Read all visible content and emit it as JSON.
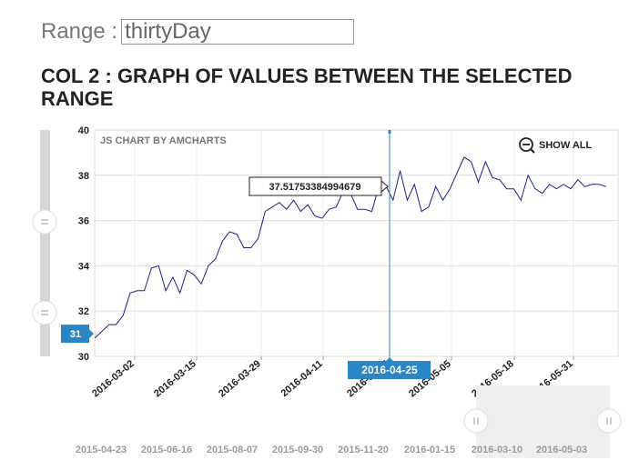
{
  "header": {
    "range_label": "Range :",
    "range_value": "thirtyDay",
    "section_title": "COL 2 : GRAPH OF VALUES BETWEEN THE SELECTED RANGE"
  },
  "chart": {
    "credit": "JS CHART BY AMCHARTS",
    "show_all_label": "SHOW ALL",
    "colors": {
      "line": "#1f1f8f",
      "cursor": "#2b86c5",
      "balloon_bg": "#2b86c5",
      "scrollbar": "#dddddd",
      "grid": "#dddddd"
    },
    "cursor_value_label": "31",
    "cursor_date_label": "2016-04-25",
    "balloon_value": "37.51753384994679",
    "scrollbar_date_labels": [
      "2015-04-23",
      "2015-06-16",
      "2015-08-07",
      "2015-09-30",
      "2015-11-20",
      "2016-01-15",
      "2016-03-10",
      "2016-05-03"
    ]
  },
  "chart_data": {
    "type": "line",
    "title": "",
    "xlabel": "",
    "ylabel": "",
    "ylim": [
      30,
      40
    ],
    "yticks": [
      30,
      32,
      34,
      36,
      38,
      40
    ],
    "xtick_labels": [
      "2016-03-02",
      "2016-03-15",
      "2016-03-29",
      "2016-04-11",
      "2016-04-25",
      "2016-05-05",
      "2016-05-18",
      "2016-05-31"
    ],
    "grid": true,
    "series": [
      {
        "values": [
          30.8,
          31.1,
          31.4,
          31.4,
          31.8,
          32.8,
          32.9,
          32.9,
          33.9,
          34.0,
          32.9,
          33.5,
          32.8,
          33.8,
          33.6,
          33.2,
          34.0,
          34.3,
          35.1,
          35.5,
          35.4,
          34.8,
          34.8,
          35.2,
          36.4,
          36.6,
          36.8,
          36.5,
          36.9,
          36.4,
          36.7,
          36.2,
          36.1,
          36.5,
          36.6,
          37.3,
          37.2,
          36.5,
          36.5,
          36.4,
          37.5,
          37.52,
          36.9,
          38.2,
          36.9,
          37.6,
          36.4,
          36.6,
          37.5,
          36.9,
          37.4,
          38.1,
          38.8,
          38.6,
          37.7,
          38.6,
          37.9,
          37.8,
          37.4,
          37.4,
          36.9,
          38.0,
          37.4,
          37.2,
          37.6,
          37.4,
          37.6,
          37.4,
          37.8,
          37.5,
          37.6,
          37.6,
          37.5
        ]
      }
    ]
  }
}
